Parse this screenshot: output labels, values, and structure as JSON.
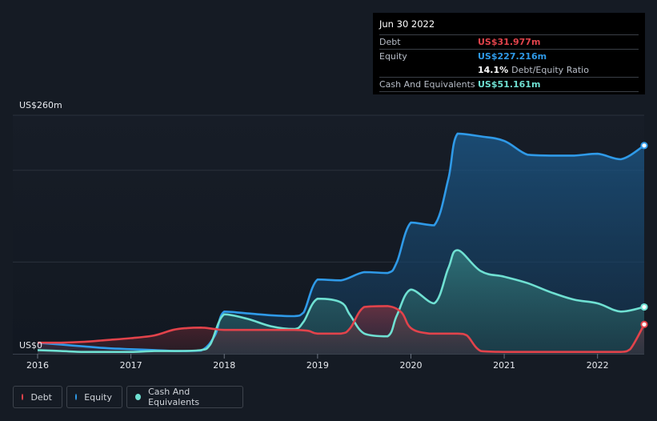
{
  "tooltip": {
    "date": "Jun 30 2022",
    "debt_label": "Debt",
    "debt_value": "US$31.977m",
    "equity_label": "Equity",
    "equity_value": "US$227.216m",
    "ratio_value": "14.1%",
    "ratio_label": "Debt/Equity Ratio",
    "cash_label": "Cash And Equivalents",
    "cash_value": "US$51.161m"
  },
  "legend": {
    "debt": "Debt",
    "equity": "Equity",
    "cash": "Cash And Equivalents"
  },
  "colors": {
    "debt": "#e2434b",
    "equity": "#2f9ae8",
    "cash": "#6fe0d2",
    "background": "#151b24"
  },
  "chart_data": {
    "type": "area",
    "ytick_top": "US$260m",
    "ytick_bottom": "US$0",
    "ylim": [
      0,
      260
    ],
    "xlim": [
      2016.0,
      2022.5
    ],
    "x_ticks": [
      {
        "label": "2016",
        "x": 2016
      },
      {
        "label": "2017",
        "x": 2017
      },
      {
        "label": "2018",
        "x": 2018
      },
      {
        "label": "2019",
        "x": 2019
      },
      {
        "label": "2020",
        "x": 2020
      },
      {
        "label": "2021",
        "x": 2021
      },
      {
        "label": "2022",
        "x": 2022
      }
    ],
    "series": [
      {
        "name": "Debt",
        "key": "debt",
        "points": [
          [
            2016.0,
            12
          ],
          [
            2016.25,
            12
          ],
          [
            2016.5,
            13
          ],
          [
            2016.75,
            15
          ],
          [
            2017.0,
            17
          ],
          [
            2017.25,
            20
          ],
          [
            2017.45,
            26
          ],
          [
            2017.6,
            28
          ],
          [
            2017.75,
            28.5
          ],
          [
            2017.9,
            27
          ],
          [
            2018.0,
            26
          ],
          [
            2018.25,
            26
          ],
          [
            2018.5,
            26
          ],
          [
            2018.75,
            26
          ],
          [
            2018.9,
            25
          ],
          [
            2019.0,
            22
          ],
          [
            2019.25,
            22
          ],
          [
            2019.35,
            28
          ],
          [
            2019.5,
            51
          ],
          [
            2019.75,
            52
          ],
          [
            2019.9,
            45
          ],
          [
            2020.0,
            28
          ],
          [
            2020.2,
            22
          ],
          [
            2020.5,
            22
          ],
          [
            2020.6,
            20
          ],
          [
            2020.75,
            3
          ],
          [
            2021.0,
            2
          ],
          [
            2021.25,
            2
          ],
          [
            2021.5,
            2
          ],
          [
            2021.75,
            2
          ],
          [
            2022.0,
            2
          ],
          [
            2022.25,
            2
          ],
          [
            2022.35,
            5
          ],
          [
            2022.5,
            32
          ]
        ]
      },
      {
        "name": "Equity",
        "key": "equity",
        "points": [
          [
            2016.0,
            12
          ],
          [
            2016.25,
            10
          ],
          [
            2016.5,
            8
          ],
          [
            2016.75,
            6
          ],
          [
            2017.0,
            5
          ],
          [
            2017.25,
            4
          ],
          [
            2017.5,
            3
          ],
          [
            2017.75,
            3.5
          ],
          [
            2017.9,
            20
          ],
          [
            2018.0,
            46
          ],
          [
            2018.25,
            44
          ],
          [
            2018.5,
            42
          ],
          [
            2018.75,
            41
          ],
          [
            2018.85,
            45
          ],
          [
            2019.0,
            81
          ],
          [
            2019.25,
            80
          ],
          [
            2019.5,
            89
          ],
          [
            2019.75,
            88
          ],
          [
            2019.85,
            100
          ],
          [
            2020.0,
            143
          ],
          [
            2020.25,
            140
          ],
          [
            2020.4,
            190
          ],
          [
            2020.5,
            240
          ],
          [
            2020.75,
            237
          ],
          [
            2021.0,
            232
          ],
          [
            2021.25,
            217
          ],
          [
            2021.5,
            216
          ],
          [
            2021.75,
            216
          ],
          [
            2022.0,
            218
          ],
          [
            2022.25,
            212
          ],
          [
            2022.5,
            227
          ]
        ]
      },
      {
        "name": "Cash And Equivalents",
        "key": "cash",
        "points": [
          [
            2016.0,
            4
          ],
          [
            2016.25,
            3
          ],
          [
            2016.5,
            2
          ],
          [
            2016.75,
            2
          ],
          [
            2017.0,
            2
          ],
          [
            2017.25,
            3
          ],
          [
            2017.5,
            3
          ],
          [
            2017.75,
            4
          ],
          [
            2017.85,
            10
          ],
          [
            2018.0,
            43
          ],
          [
            2018.25,
            38
          ],
          [
            2018.5,
            30
          ],
          [
            2018.75,
            27
          ],
          [
            2018.85,
            35
          ],
          [
            2019.0,
            60
          ],
          [
            2019.25,
            56
          ],
          [
            2019.35,
            42
          ],
          [
            2019.5,
            22
          ],
          [
            2019.75,
            19
          ],
          [
            2019.85,
            42
          ],
          [
            2020.0,
            70
          ],
          [
            2020.25,
            55
          ],
          [
            2020.4,
            93
          ],
          [
            2020.5,
            113
          ],
          [
            2020.75,
            90
          ],
          [
            2021.0,
            84
          ],
          [
            2021.25,
            77
          ],
          [
            2021.5,
            67
          ],
          [
            2021.75,
            59
          ],
          [
            2022.0,
            55
          ],
          [
            2022.25,
            46
          ],
          [
            2022.5,
            51
          ]
        ]
      }
    ]
  }
}
